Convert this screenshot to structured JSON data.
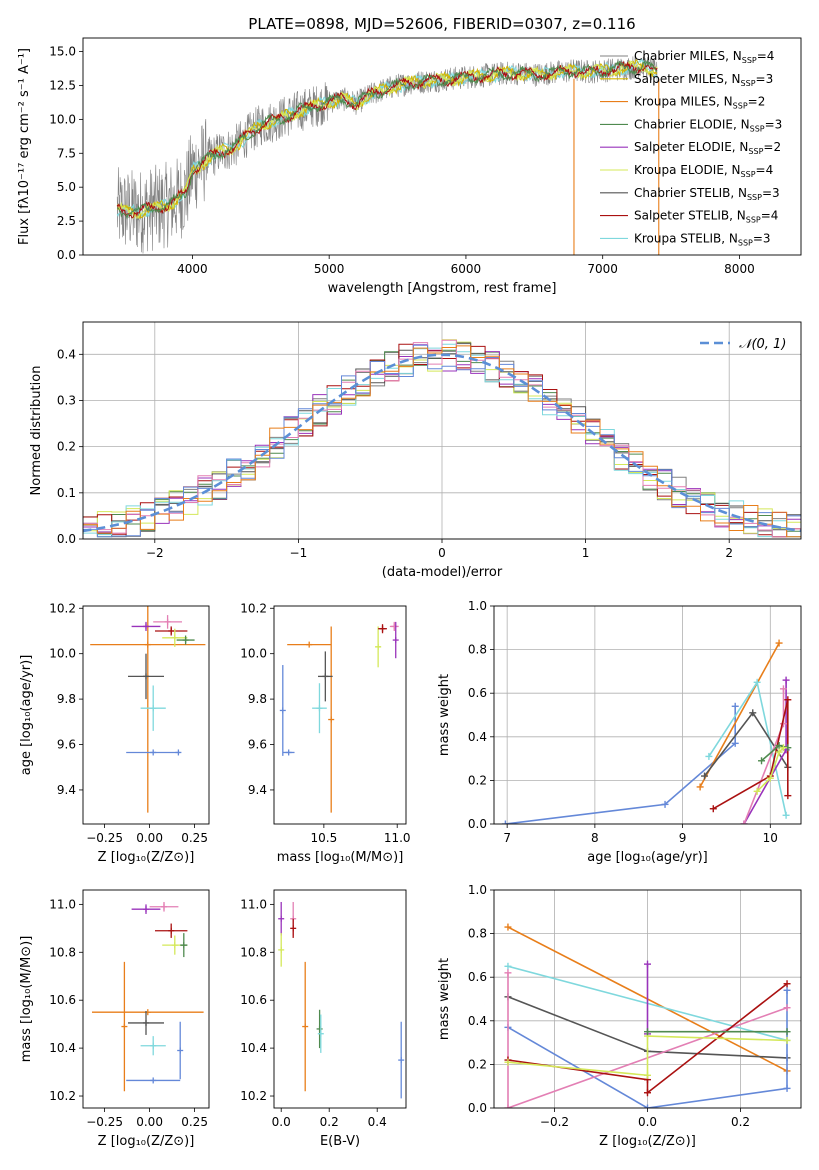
{
  "colors": {
    "chabrier_miles": "#808080",
    "salpeter_miles": "#d4b600",
    "kroupa_miles": "#e87e1a",
    "chabrier_elodie": "#4f8a4f",
    "salpeter_elodie": "#9933bb",
    "kroupa_elodie": "#d4e85a",
    "chabrier_stelib": "#555555",
    "salpeter_stelib": "#aa1111",
    "kroupa_stelib": "#7fd8dd",
    "pink": "#e37fb4",
    "blue": "#6488d8",
    "gaussian": "#5b8fd6"
  },
  "chart_data": [
    {
      "id": "spectrum",
      "type": "line",
      "title": "PLATE=0898, MJD=52606, FIBERID=0307, z=0.116",
      "xlabel": "wavelength [Angstrom, rest frame]",
      "ylabel": "Flux [fλ10⁻¹⁷ erg cm⁻² s⁻¹ A⁻¹]",
      "xlim": [
        3200,
        8450
      ],
      "ylim": [
        0,
        16
      ],
      "xticks": [
        "4000",
        "5000",
        "6000",
        "7000",
        "8000"
      ],
      "yticks": [
        "0.0",
        "2.5",
        "5.0",
        "7.5",
        "10.0",
        "12.5",
        "15.0"
      ],
      "legend_position": "top-right",
      "legend": [
        {
          "label": "Chabrier MILES, N",
          "sub": "SSP",
          "tail": "=4",
          "color_key": "chabrier_miles"
        },
        {
          "label": "Salpeter MILES, N",
          "sub": "SSP",
          "tail": "=3",
          "color_key": "salpeter_miles"
        },
        {
          "label": "Kroupa MILES, N",
          "sub": "SSP",
          "tail": "=2",
          "color_key": "kroupa_miles"
        },
        {
          "label": "Chabrier ELODIE, N",
          "sub": "SSP",
          "tail": "=3",
          "color_key": "chabrier_elodie"
        },
        {
          "label": "Salpeter ELODIE, N",
          "sub": "SSP",
          "tail": "=2",
          "color_key": "salpeter_elodie"
        },
        {
          "label": "Kroupa ELODIE, N",
          "sub": "SSP",
          "tail": "=4",
          "color_key": "kroupa_elodie"
        },
        {
          "label": "Chabrier STELIB, N",
          "sub": "SSP",
          "tail": "=3",
          "color_key": "chabrier_stelib"
        },
        {
          "label": "Salpeter STELIB, N",
          "sub": "SSP",
          "tail": "=4",
          "color_key": "salpeter_stelib"
        },
        {
          "label": "Kroupa STELIB, N",
          "sub": "SSP",
          "tail": "=3",
          "color_key": "kroupa_stelib"
        }
      ],
      "continuum": [
        [
          3450,
          3.3
        ],
        [
          3600,
          3.2
        ],
        [
          3700,
          3.4
        ],
        [
          3850,
          3.8
        ],
        [
          3950,
          4.6
        ],
        [
          4000,
          6.2
        ],
        [
          4100,
          7.0
        ],
        [
          4200,
          7.6
        ],
        [
          4300,
          7.9
        ],
        [
          4400,
          8.8
        ],
        [
          4500,
          9.6
        ],
        [
          4600,
          9.9
        ],
        [
          4700,
          10.3
        ],
        [
          4800,
          10.7
        ],
        [
          4900,
          11.0
        ],
        [
          5000,
          11.3
        ],
        [
          5100,
          11.5
        ],
        [
          5200,
          11.2
        ],
        [
          5300,
          11.8
        ],
        [
          5400,
          12.2
        ],
        [
          5500,
          12.5
        ],
        [
          5600,
          12.7
        ],
        [
          5700,
          12.8
        ],
        [
          5800,
          12.9
        ],
        [
          5900,
          13.0
        ],
        [
          6000,
          13.1
        ],
        [
          6100,
          13.2
        ],
        [
          6200,
          13.3
        ],
        [
          6300,
          13.4
        ],
        [
          6400,
          13.4
        ],
        [
          6500,
          13.3
        ],
        [
          6600,
          13.4
        ],
        [
          6700,
          13.5
        ],
        [
          6800,
          13.6
        ],
        [
          6900,
          13.5
        ],
        [
          7000,
          13.6
        ],
        [
          7100,
          13.7
        ],
        [
          7200,
          13.8
        ],
        [
          7300,
          14.0
        ],
        [
          7400,
          13.4
        ]
      ],
      "spikes": [
        [
          6790,
          0
        ],
        [
          7410,
          0
        ]
      ]
    },
    {
      "id": "residuals",
      "type": "histogram",
      "xlabel": "(data-model)/error",
      "ylabel": "Normed distribution",
      "xlim": [
        -2.5,
        2.5
      ],
      "ylim": [
        0,
        0.47
      ],
      "xticks": [
        "−2",
        "−1",
        "0",
        "1",
        "2"
      ],
      "yticks": [
        "0.0",
        "0.1",
        "0.2",
        "0.3",
        "0.4"
      ],
      "grid": true,
      "legend_position": "top-right",
      "legend": "𝒩(0, 1)",
      "bin_width": 0.1,
      "gaussian": {
        "mean": 0,
        "sigma": 1
      }
    },
    {
      "id": "age_vs_Z",
      "type": "errorbar",
      "xlabel": "Z [log₁₀(Z/Z⊙)]",
      "ylabel": "age  [log₁₀(age/yr)]",
      "xlim": [
        -0.37,
        0.33
      ],
      "ylim": [
        9.25,
        10.21
      ],
      "xticks": [
        "−0.25",
        "0.00",
        "0.25"
      ],
      "yticks": [
        "9.4",
        "9.6",
        "9.8",
        "10.0",
        "10.2"
      ],
      "points": [
        {
          "x": -0.01,
          "xerr": 0.32,
          "y": 10.04,
          "yerr": 0.74,
          "color_key": "kroupa_miles"
        },
        {
          "x": 0.02,
          "xerr": 0.15,
          "y": 9.565,
          "yerr": 0.0,
          "color_key": "blue"
        },
        {
          "x": 0.16,
          "xerr": 0.0,
          "y": 9.565,
          "yerr": 0.0,
          "color_key": "blue"
        },
        {
          "x": -0.02,
          "xerr": 0.1,
          "y": 9.9,
          "yerr": 0.1,
          "color_key": "chabrier_stelib"
        },
        {
          "x": 0.02,
          "xerr": 0.07,
          "y": 9.76,
          "yerr": 0.1,
          "color_key": "kroupa_stelib"
        },
        {
          "x": -0.02,
          "xerr": 0.08,
          "y": 10.12,
          "yerr": 0.02,
          "color_key": "salpeter_elodie"
        },
        {
          "x": 0.1,
          "xerr": 0.08,
          "y": 10.14,
          "yerr": 0.03,
          "color_key": "pink"
        },
        {
          "x": 0.12,
          "xerr": 0.09,
          "y": 10.1,
          "yerr": 0.02,
          "color_key": "salpeter_stelib"
        },
        {
          "x": 0.14,
          "xerr": 0.07,
          "y": 10.07,
          "yerr": 0.04,
          "color_key": "kroupa_elodie"
        },
        {
          "x": 0.2,
          "xerr": 0.05,
          "y": 10.06,
          "yerr": 0.02,
          "color_key": "chabrier_elodie"
        }
      ]
    },
    {
      "id": "age_vs_mass",
      "type": "errorbar",
      "xlabel": "mass [log₁₀(M/M⊙)]",
      "ylabel": "",
      "xlim": [
        10.16,
        11.06
      ],
      "ylim": [
        9.25,
        10.21
      ],
      "xticks": [
        "10.5",
        "11.0"
      ],
      "yticks": [
        "9.4",
        "9.6",
        "9.8",
        "10.0",
        "10.2"
      ],
      "points": [
        {
          "x": 10.55,
          "xerr": 0.0,
          "y": 9.71,
          "yerr": 0.41,
          "color_key": "kroupa_miles"
        },
        {
          "x": 10.4,
          "xerr": 0.15,
          "y": 10.04,
          "yerr": 0.0,
          "color_key": "kroupa_miles"
        },
        {
          "x": 10.26,
          "xerr": 0.04,
          "y": 9.565,
          "yerr": 0.0,
          "color_key": "blue"
        },
        {
          "x": 10.22,
          "xerr": 0.0,
          "y": 9.75,
          "yerr": 0.2,
          "color_key": "blue"
        },
        {
          "x": 10.51,
          "xerr": 0.05,
          "y": 9.9,
          "yerr": 0.11,
          "color_key": "chabrier_stelib"
        },
        {
          "x": 10.47,
          "xerr": 0.05,
          "y": 9.76,
          "yerr": 0.11,
          "color_key": "kroupa_stelib"
        },
        {
          "x": 10.87,
          "xerr": 0.02,
          "y": 10.03,
          "yerr": 0.09,
          "color_key": "kroupa_elodie"
        },
        {
          "x": 10.9,
          "xerr": 0.03,
          "y": 10.11,
          "yerr": 0.02,
          "color_key": "salpeter_stelib"
        },
        {
          "x": 10.98,
          "xerr": 0.03,
          "y": 10.12,
          "yerr": 0.02,
          "color_key": "pink"
        },
        {
          "x": 10.99,
          "xerr": 0.0,
          "y": 10.06,
          "yerr": 0.08,
          "color_key": "salpeter_elodie"
        }
      ]
    },
    {
      "id": "weight_vs_age",
      "type": "line",
      "xlabel": "age  [log₁₀(age/yr)]",
      "ylabel": "mass weight",
      "xlim": [
        6.85,
        10.35
      ],
      "ylim": [
        0,
        1
      ],
      "xticks": [
        "7",
        "8",
        "9",
        "10"
      ],
      "yticks": [
        "0.0",
        "0.2",
        "0.4",
        "0.6",
        "0.8",
        "1.0"
      ],
      "grid": true,
      "series": [
        {
          "color_key": "blue",
          "x": [
            6.98,
            8.8,
            9.6,
            9.6
          ],
          "y": [
            0.0,
            0.09,
            0.37,
            0.54
          ]
        },
        {
          "color_key": "kroupa_miles",
          "x": [
            9.2,
            10.1
          ],
          "y": [
            0.17,
            0.83
          ]
        },
        {
          "color_key": "kroupa_stelib",
          "x": [
            9.3,
            9.85,
            10.18
          ],
          "y": [
            0.31,
            0.65,
            0.04
          ]
        },
        {
          "color_key": "chabrier_stelib",
          "x": [
            9.25,
            9.8,
            10.2
          ],
          "y": [
            0.22,
            0.51,
            0.26
          ]
        },
        {
          "color_key": "salpeter_elodie",
          "x": [
            9.7,
            10.18,
            10.18
          ],
          "y": [
            0.0,
            0.34,
            0.66
          ]
        },
        {
          "color_key": "pink",
          "x": [
            9.7,
            10.15,
            10.15
          ],
          "y": [
            0.0,
            0.46,
            0.62
          ]
        },
        {
          "color_key": "salpeter_stelib",
          "x": [
            9.35,
            10.0,
            10.2,
            10.2
          ],
          "y": [
            0.07,
            0.22,
            0.57,
            0.13
          ]
        },
        {
          "color_key": "chabrier_elodie",
          "x": [
            9.9,
            10.1,
            10.2
          ],
          "y": [
            0.29,
            0.36,
            0.35
          ]
        },
        {
          "color_key": "kroupa_elodie",
          "x": [
            9.85,
            10.0,
            10.1,
            10.15
          ],
          "y": [
            0.15,
            0.21,
            0.33,
            0.35
          ]
        }
      ]
    },
    {
      "id": "mass_vs_Z",
      "type": "errorbar",
      "xlabel": "Z [log₁₀(Z/Z⊙)]",
      "ylabel": "mass [log₁₀(M/M⊙)]",
      "xlim": [
        -0.37,
        0.33
      ],
      "ylim": [
        10.15,
        11.06
      ],
      "xticks": [
        "−0.25",
        "0.00",
        "0.25"
      ],
      "yticks": [
        "10.2",
        "10.4",
        "10.6",
        "10.8",
        "11.0"
      ],
      "points": [
        {
          "x": -0.01,
          "xerr": 0.31,
          "y": 10.55,
          "yerr": 0.0,
          "color_key": "kroupa_miles"
        },
        {
          "x": -0.14,
          "xerr": 0.0,
          "y": 10.49,
          "yerr": 0.27,
          "color_key": "kroupa_miles"
        },
        {
          "x": 0.02,
          "xerr": 0.15,
          "y": 10.265,
          "yerr": 0.0,
          "color_key": "blue"
        },
        {
          "x": 0.17,
          "xerr": 0.0,
          "y": 10.39,
          "yerr": 0.12,
          "color_key": "blue"
        },
        {
          "x": -0.02,
          "xerr": 0.1,
          "y": 10.505,
          "yerr": 0.05,
          "color_key": "chabrier_stelib"
        },
        {
          "x": 0.02,
          "xerr": 0.07,
          "y": 10.41,
          "yerr": 0.04,
          "color_key": "kroupa_stelib"
        },
        {
          "x": -0.02,
          "xerr": 0.08,
          "y": 10.98,
          "yerr": 0.02,
          "color_key": "salpeter_elodie"
        },
        {
          "x": 0.08,
          "xerr": 0.08,
          "y": 10.99,
          "yerr": 0.02,
          "color_key": "pink"
        },
        {
          "x": 0.12,
          "xerr": 0.09,
          "y": 10.89,
          "yerr": 0.03,
          "color_key": "salpeter_stelib"
        },
        {
          "x": 0.14,
          "xerr": 0.07,
          "y": 10.83,
          "yerr": 0.04,
          "color_key": "kroupa_elodie"
        },
        {
          "x": 0.19,
          "xerr": 0.02,
          "y": 10.83,
          "yerr": 0.05,
          "color_key": "chabrier_elodie"
        }
      ]
    },
    {
      "id": "mass_vs_ebv",
      "type": "errorbar",
      "xlabel": "E(B-V)",
      "ylabel": "",
      "xlim": [
        -0.03,
        0.52
      ],
      "ylim": [
        10.15,
        11.06
      ],
      "xticks": [
        "0.0",
        "0.2",
        "0.4"
      ],
      "yticks": [
        "10.2",
        "10.4",
        "10.6",
        "10.8",
        "11.0"
      ],
      "points": [
        {
          "x": 0.0,
          "xerr": 0.0,
          "y": 10.94,
          "yerr": 0.07,
          "color_key": "salpeter_elodie"
        },
        {
          "x": 0.0,
          "xerr": 0.0,
          "y": 10.81,
          "yerr": 0.07,
          "color_key": "kroupa_elodie"
        },
        {
          "x": 0.05,
          "xerr": 0.0,
          "y": 10.94,
          "yerr": 0.07,
          "color_key": "pink"
        },
        {
          "x": 0.05,
          "xerr": 0.0,
          "y": 10.9,
          "yerr": 0.04,
          "color_key": "salpeter_stelib"
        },
        {
          "x": 0.1,
          "xerr": 0.0,
          "y": 10.49,
          "yerr": 0.27,
          "color_key": "kroupa_miles"
        },
        {
          "x": 0.16,
          "xerr": 0.0,
          "y": 10.48,
          "yerr": 0.08,
          "color_key": "chabrier_elodie"
        },
        {
          "x": 0.165,
          "xerr": 0.0,
          "y": 10.46,
          "yerr": 0.08,
          "color_key": "kroupa_stelib"
        },
        {
          "x": 0.5,
          "xerr": 0.0,
          "y": 10.35,
          "yerr": 0.16,
          "color_key": "blue"
        }
      ]
    },
    {
      "id": "weight_vs_Z",
      "type": "line",
      "xlabel": "Z [log₁₀(Z/Z⊙)]",
      "ylabel": "mass weight",
      "xlim": [
        -0.33,
        0.33
      ],
      "ylim": [
        0,
        1
      ],
      "xticks": [
        "−0.2",
        "0.0",
        "0.2"
      ],
      "yticks": [
        "0.0",
        "0.2",
        "0.4",
        "0.6",
        "0.8",
        "1.0"
      ],
      "grid": true,
      "series": [
        {
          "color_key": "kroupa_miles",
          "x": [
            -0.3,
            0.3
          ],
          "y": [
            0.83,
            0.17
          ]
        },
        {
          "color_key": "kroupa_stelib",
          "x": [
            -0.3,
            0.3
          ],
          "y": [
            0.65,
            0.31
          ]
        },
        {
          "color_key": "chabrier_stelib",
          "x": [
            -0.3,
            0.0,
            0.3
          ],
          "y": [
            0.51,
            0.26,
            0.23
          ]
        },
        {
          "color_key": "blue",
          "x": [
            -0.3,
            0.0,
            0.3,
            0.3
          ],
          "y": [
            0.37,
            0.0,
            0.09,
            0.54
          ]
        },
        {
          "color_key": "salpeter_elodie",
          "x": [
            0.0,
            0.0
          ],
          "y": [
            0.34,
            0.66
          ]
        },
        {
          "color_key": "pink",
          "x": [
            -0.3,
            -0.3,
            0.3
          ],
          "y": [
            0.62,
            0.0,
            0.46
          ]
        },
        {
          "color_key": "salpeter_stelib",
          "x": [
            -0.3,
            0.0,
            0.0,
            0.3
          ],
          "y": [
            0.22,
            0.13,
            0.07,
            0.57
          ]
        },
        {
          "color_key": "kroupa_elodie",
          "x": [
            -0.3,
            0.0,
            0.0,
            0.3
          ],
          "y": [
            0.21,
            0.15,
            0.33,
            0.31
          ]
        },
        {
          "color_key": "chabrier_elodie",
          "x": [
            0.0,
            0.3
          ],
          "y": [
            0.35,
            0.35
          ]
        }
      ]
    }
  ]
}
